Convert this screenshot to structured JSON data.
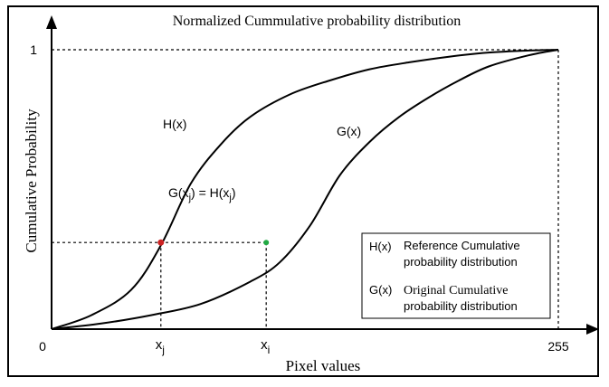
{
  "chart_data": {
    "type": "line",
    "title": "Normalized Cummulative probability distribution",
    "xlabel": "Pixel values",
    "ylabel": "Cumulative Probability",
    "xlim": [
      0,
      255
    ],
    "ylim": [
      0,
      1
    ],
    "x_ticks": [
      {
        "value": 0,
        "label": "0"
      },
      {
        "value": 255,
        "label": "255"
      }
    ],
    "y_ticks": [
      {
        "value": 1,
        "label": "1"
      }
    ],
    "series": [
      {
        "name": "H(x)",
        "color": "#000000",
        "x": [
          0,
          20,
          40,
          55,
          70,
          85,
          100,
          120,
          140,
          160,
          180,
          200,
          220,
          240,
          255
        ],
        "y": [
          0,
          0.05,
          0.14,
          0.3,
          0.52,
          0.66,
          0.76,
          0.84,
          0.89,
          0.93,
          0.955,
          0.975,
          0.99,
          0.997,
          1.0
        ]
      },
      {
        "name": "G(x)",
        "color": "#000000",
        "x": [
          0,
          25,
          50,
          75,
          100,
          115,
          130,
          145,
          160,
          175,
          190,
          205,
          220,
          240,
          255
        ],
        "y": [
          0,
          0.02,
          0.05,
          0.09,
          0.17,
          0.24,
          0.37,
          0.55,
          0.67,
          0.76,
          0.83,
          0.89,
          0.94,
          0.98,
          1.0
        ]
      }
    ],
    "annotations": {
      "match_label": "G(x",
      "match_label_sub1": "j",
      "match_label_mid": ") = H(x",
      "match_label_sub2": "j",
      "match_label_end": ")",
      "h_curve_label": "H(x)",
      "g_curve_label": "G(x)",
      "xj_label": "x",
      "xj_sub": "j",
      "xi_label": "x",
      "xi_sub": "i",
      "match_level": 0.31,
      "xj_value": 55,
      "xi_value": 108,
      "xj_point_color": "#cc2222",
      "xi_point_color": "#22aa44"
    },
    "legend": {
      "placement": "bottom-right",
      "entries": [
        {
          "key": "H(x)",
          "line1": "Reference Cumulative",
          "line2": "probability distribution"
        },
        {
          "key": "G(x)",
          "line1": "Original Cumulative",
          "line2": "probability distribution"
        }
      ]
    },
    "grid": false
  }
}
